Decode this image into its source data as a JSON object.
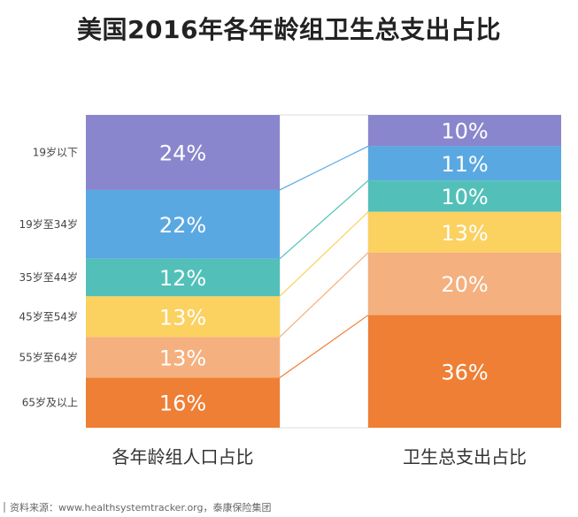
{
  "chart_data": {
    "type": "bar",
    "title": "美国2016年各年龄组卫生总支出占比",
    "categories": [
      "19岁以下",
      "19岁至34岁",
      "35岁至44岁",
      "45岁至54岁",
      "55岁至64岁",
      "65岁及以上"
    ],
    "series": [
      {
        "name": "各年龄组人口占比",
        "values": [
          24,
          22,
          12,
          13,
          13,
          16
        ],
        "labels": [
          "24%",
          "22%",
          "12%",
          "13%",
          "13%",
          "16%"
        ]
      },
      {
        "name": "卫生总支出占比",
        "values": [
          10,
          11,
          10,
          13,
          20,
          36
        ],
        "labels": [
          "10%",
          "11%",
          "10%",
          "13%",
          "20%",
          "36%"
        ]
      }
    ],
    "stacked": true,
    "ylim": [
      0,
      100
    ],
    "colors": [
      "#8a86cd",
      "#5aa8e2",
      "#52c0b8",
      "#fbd160",
      "#f4b07e",
      "#ee7f35"
    ],
    "connector_colors": [
      "#8a86cd",
      "#5aa8e2",
      "#52c0b8",
      "#fbd160",
      "#f4b07e",
      "#ee7f35"
    ]
  },
  "source": "资料来源：www.healthsystemtracker.org，泰康保险集团"
}
